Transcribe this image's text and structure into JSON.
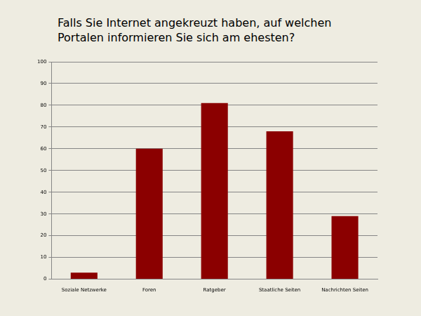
{
  "chart_data": {
    "type": "bar",
    "title": "Falls Sie Internet angekreuzt haben, auf welchen Portalen informieren Sie sich am ehesten?",
    "categories": [
      "Soziale Netzwerke",
      "Foren",
      "Ratgeber",
      "Staatliche Seiten",
      "Nachrichten Seiten"
    ],
    "values": [
      3,
      60,
      81,
      68,
      29
    ],
    "color": "#8b0000",
    "ylim": [
      0,
      100
    ],
    "yticks": [
      0,
      10,
      20,
      30,
      40,
      50,
      60,
      70,
      80,
      90,
      100
    ],
    "grid": true
  }
}
